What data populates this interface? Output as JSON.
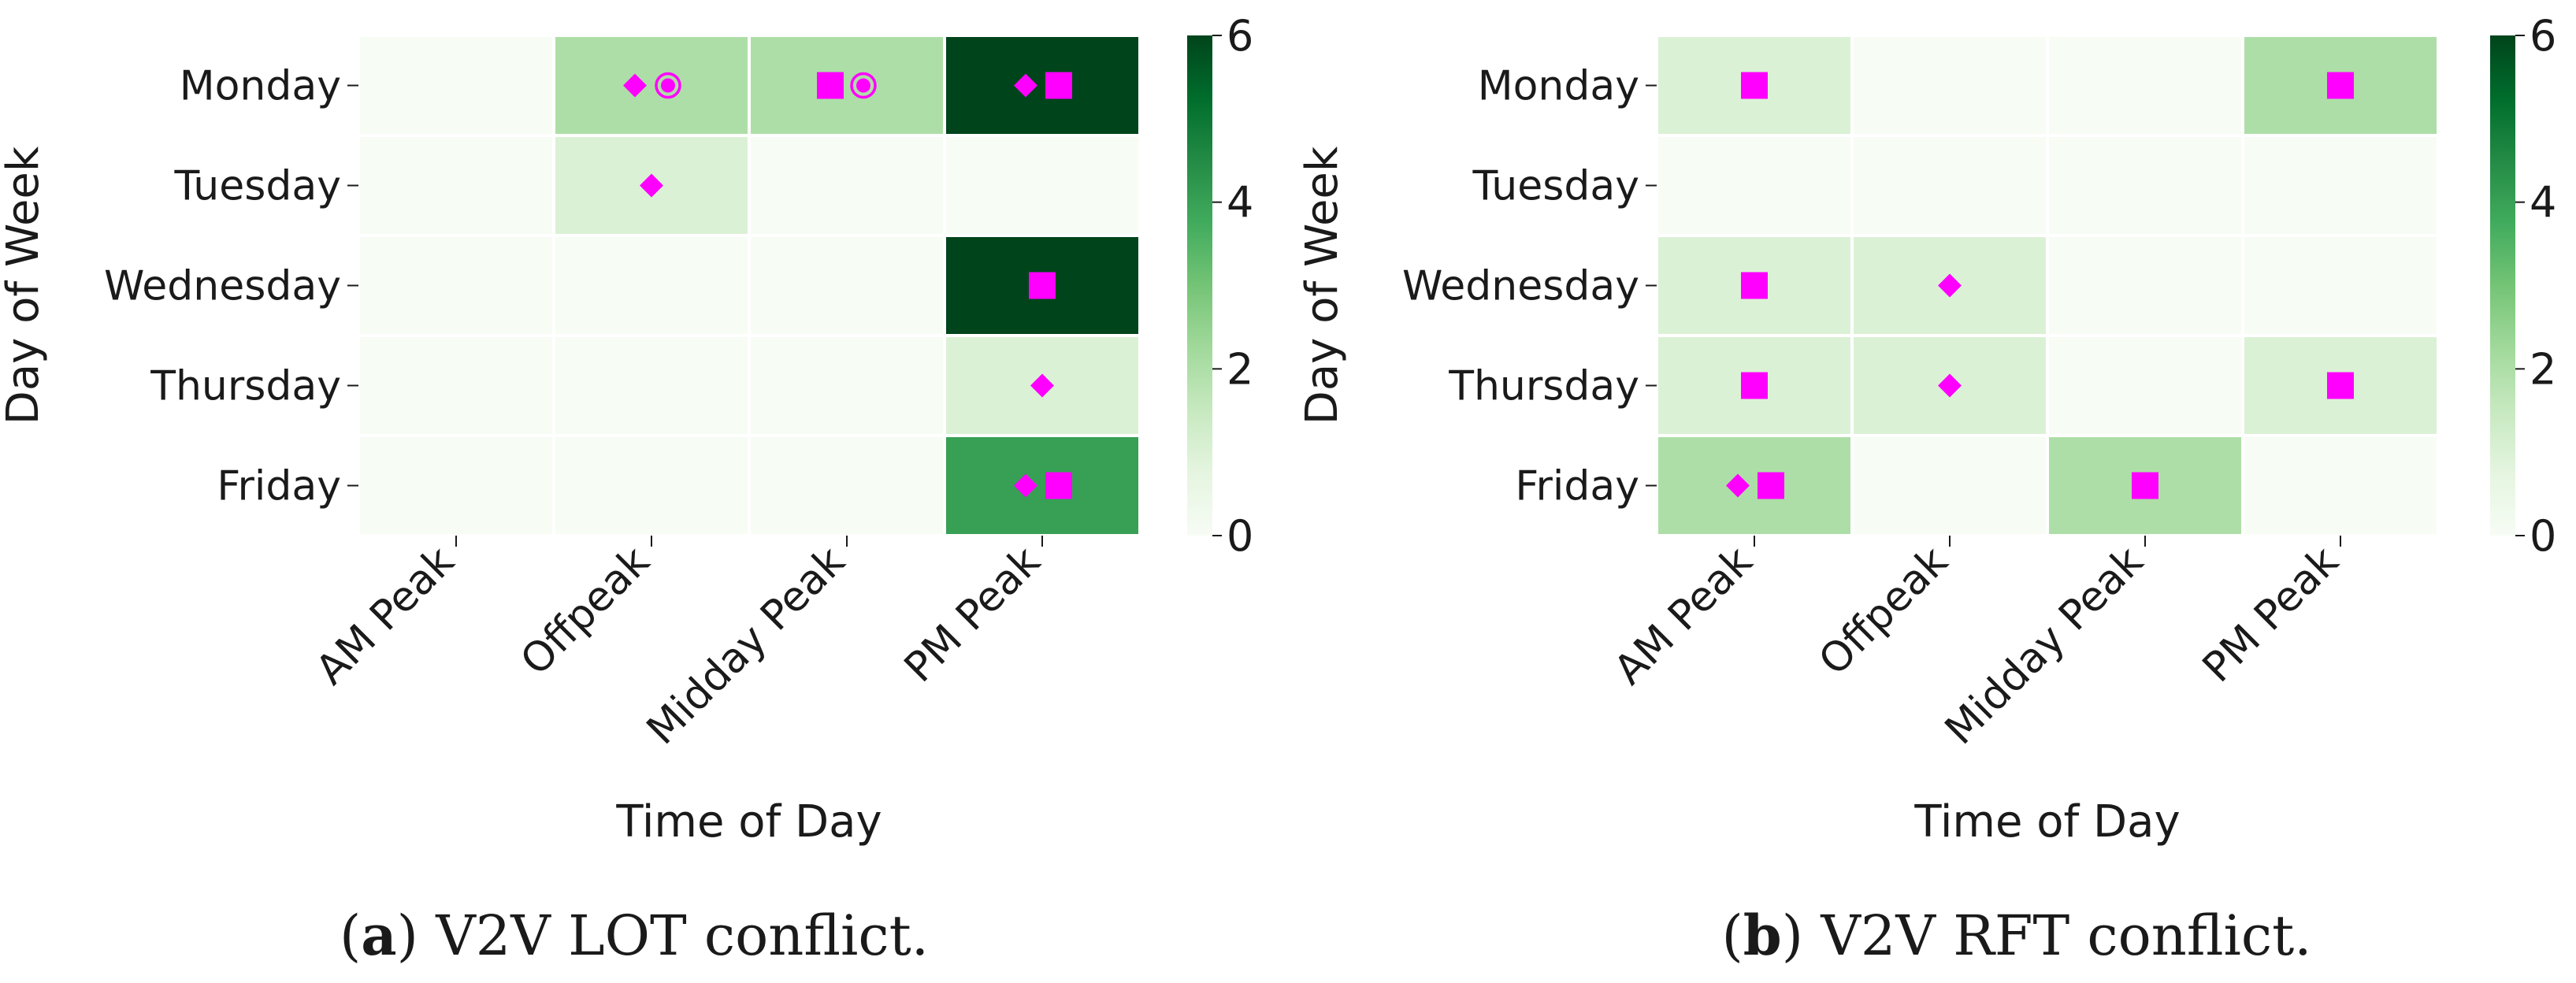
{
  "colors": {
    "scale": [
      "#f7fcf5",
      "#e5f5e0",
      "#c7e9c0",
      "#a1d99b",
      "#74c476",
      "#41ab5d",
      "#238b45",
      "#006d2c",
      "#00441b"
    ],
    "marker": "#ff00ff",
    "grid": "#ffffff",
    "text": "#1a1a1a"
  },
  "chart_data": [
    {
      "type": "heatmap",
      "caption_label": "a",
      "caption_text": "V2V LOT conflict.",
      "xlabel": "Time of Day",
      "ylabel": "Day of Week",
      "x_categories": [
        "AM Peak",
        "Offpeak",
        "Midday Peak",
        "PM Peak"
      ],
      "y_categories": [
        "Monday",
        "Tuesday",
        "Wednesday",
        "Thursday",
        "Friday"
      ],
      "values": [
        [
          0,
          2,
          2,
          6
        ],
        [
          0,
          1,
          0,
          0
        ],
        [
          0,
          0,
          0,
          6
        ],
        [
          0,
          0,
          0,
          1
        ],
        [
          0,
          0,
          0,
          4
        ]
      ],
      "markers": [
        [
          [],
          [
            "diamond",
            "circle"
          ],
          [
            "square",
            "circle"
          ],
          [
            "diamond",
            "square"
          ]
        ],
        [
          [],
          [
            "diamond"
          ],
          [],
          []
        ],
        [
          [],
          [],
          [],
          [
            "square"
          ]
        ],
        [
          [],
          [],
          [],
          [
            "diamond"
          ]
        ],
        [
          [],
          [],
          [],
          [
            "diamond",
            "square"
          ]
        ]
      ],
      "colorbar": {
        "min": 0,
        "max": 6,
        "ticks": [
          0,
          2,
          4,
          6
        ]
      }
    },
    {
      "type": "heatmap",
      "caption_label": "b",
      "caption_text": "V2V RFT conflict.",
      "xlabel": "Time of Day",
      "ylabel": "Day of Week",
      "x_categories": [
        "AM Peak",
        "Offpeak",
        "Midday Peak",
        "PM Peak"
      ],
      "y_categories": [
        "Monday",
        "Tuesday",
        "Wednesday",
        "Thursday",
        "Friday"
      ],
      "values": [
        [
          1,
          0,
          0,
          2
        ],
        [
          0,
          0,
          0,
          0
        ],
        [
          1,
          1,
          0,
          0
        ],
        [
          1,
          1,
          0,
          1
        ],
        [
          2,
          0,
          2,
          0
        ]
      ],
      "markers": [
        [
          [
            "square"
          ],
          [],
          [],
          [
            "square"
          ]
        ],
        [
          [],
          [],
          [],
          []
        ],
        [
          [
            "square"
          ],
          [
            "diamond"
          ],
          [],
          []
        ],
        [
          [
            "square"
          ],
          [
            "diamond"
          ],
          [],
          [
            "square"
          ]
        ],
        [
          [
            "diamond",
            "square"
          ],
          [],
          [
            "square"
          ],
          []
        ]
      ],
      "colorbar": {
        "min": 0,
        "max": 6,
        "ticks": [
          0,
          2,
          4,
          6
        ]
      }
    }
  ]
}
